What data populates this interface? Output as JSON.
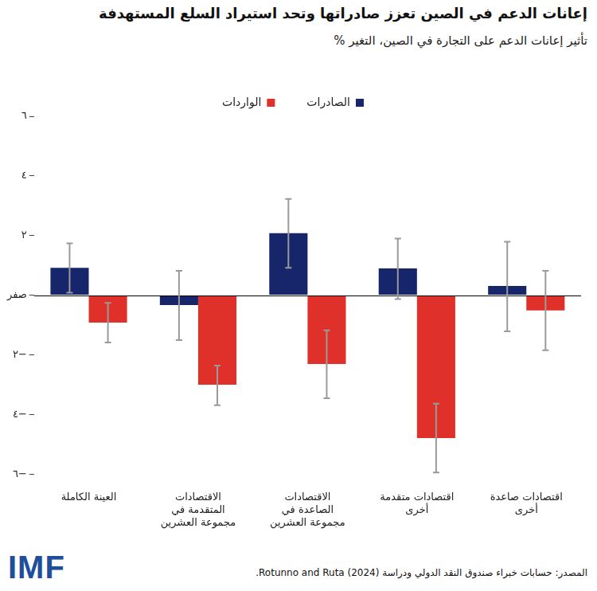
{
  "chart_data": {
    "type": "bar",
    "title": "إعانات الدعم في الصين تعزز صادراتها وتحد استيراد السلع المستهدفة",
    "subtitle": "تأثير إعانات الدعم على التجارة في الصين، التغير %",
    "source": "المصدر: حسابات خبراء صندوق النقد الدولي ودراسة Rotunno and Ruta (2024).",
    "logo": "IMF",
    "categories": [
      "العينة الكاملة",
      "الاقتصادات المتقدمة في مجموعة العشرين",
      "الاقتصادات الصاعدة في مجموعة العشرين",
      "اقتصادات متقدمة أخرى",
      "اقتصادات صاعدة أخرى"
    ],
    "series": [
      {
        "name": "الصادرات",
        "color": "#17256b",
        "values": [
          0.92,
          -0.33,
          2.08,
          0.9,
          0.31
        ],
        "error_bars": [
          [
            0.08,
            1.74
          ],
          [
            -1.51,
            0.82
          ],
          [
            0.92,
            3.23
          ],
          [
            -0.13,
            1.9
          ],
          [
            -1.21,
            1.79
          ]
        ]
      },
      {
        "name": "الواردات",
        "color": "#e0302a",
        "values": [
          -0.92,
          -3.0,
          -2.31,
          -4.79,
          -0.51
        ],
        "error_bars": [
          [
            -1.59,
            -0.26
          ],
          [
            -3.69,
            -2.36
          ],
          [
            -3.46,
            -1.18
          ],
          [
            -5.95,
            -3.64
          ],
          [
            -1.85,
            0.82
          ]
        ]
      }
    ],
    "ylim": [
      -6,
      6
    ],
    "yticks": [
      {
        "value": -6,
        "label": "−٦"
      },
      {
        "value": -4,
        "label": "−٤"
      },
      {
        "value": -2,
        "label": "−٢"
      },
      {
        "value": 0,
        "label": "صفر"
      },
      {
        "value": 2,
        "label": "٢"
      },
      {
        "value": 4,
        "label": "٤"
      },
      {
        "value": 6,
        "label": "٦"
      }
    ],
    "grid": false,
    "legend": "top"
  }
}
